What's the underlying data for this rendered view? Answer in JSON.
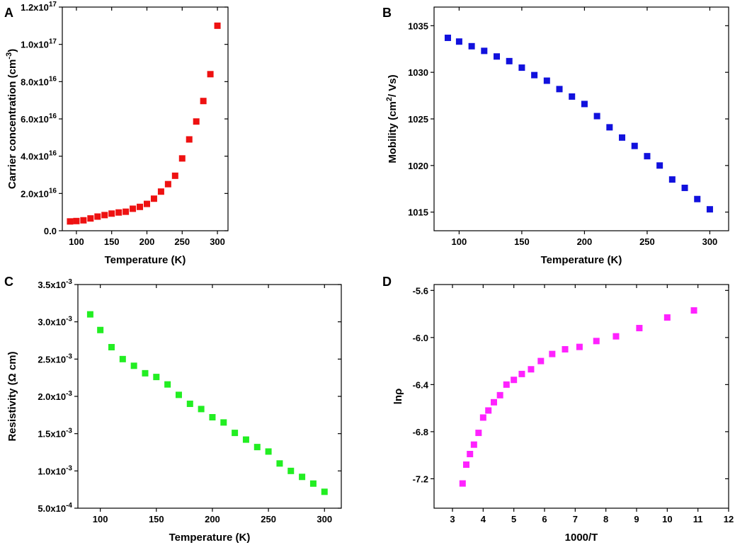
{
  "chart_data": [
    {
      "panel": "A",
      "type": "scatter",
      "color": "#ee1111",
      "xlabel": "Temperature (K)",
      "ylabel": "Carrier concentration (cm-3)",
      "ylabel_parts": {
        "base": "Carrier concentration (cm",
        "sup": "-3",
        "tail": ")"
      },
      "xlim": [
        80,
        315
      ],
      "ylim": [
        0,
        1.2e+17
      ],
      "xticks": [
        100,
        150,
        200,
        250,
        300
      ],
      "xtick_labels": [
        "100",
        "150",
        "200",
        "250",
        "300"
      ],
      "yticks": [
        0,
        2e+16,
        4e+16,
        6e+16,
        8e+16,
        1e+17,
        1.2e+17
      ],
      "ytick_labels": [
        {
          "base": "0.0",
          "sup": ""
        },
        {
          "base": "2.0x10",
          "sup": "16"
        },
        {
          "base": "4.0x10",
          "sup": "16"
        },
        {
          "base": "6.0x10",
          "sup": "16"
        },
        {
          "base": "8.0x10",
          "sup": "16"
        },
        {
          "base": "1.0x10",
          "sup": "17"
        },
        {
          "base": "1.2x10",
          "sup": "17"
        }
      ],
      "x": [
        91,
        100,
        110,
        120,
        130,
        140,
        150,
        160,
        170,
        180,
        190,
        200,
        210,
        220,
        230,
        240,
        250,
        260,
        270,
        280,
        290,
        300
      ],
      "y": [
        5000000000000000.0,
        5200000000000000.0,
        5600000000000000.0,
        6600000000000000.0,
        7600000000000000.0,
        8400000000000000.0,
        9200000000000000.0,
        9800000000000000.0,
        1.02e+16,
        1.18e+16,
        1.28e+16,
        1.44e+16,
        1.72e+16,
        2.1e+16,
        2.5e+16,
        2.95e+16,
        3.88e+16,
        4.9e+16,
        5.86e+16,
        6.96e+16,
        8.4e+16,
        1.1e+17
      ]
    },
    {
      "panel": "B",
      "type": "scatter",
      "color": "#1111dd",
      "xlabel": "Temperature (K)",
      "ylabel": "Mobility (cm2/ Vs)",
      "ylabel_parts": {
        "base": "Mobility (cm",
        "sup": "2",
        "tail": "/ Vs)"
      },
      "xlim": [
        80,
        315
      ],
      "ylim": [
        1013,
        1037
      ],
      "xticks": [
        100,
        150,
        200,
        250,
        300
      ],
      "xtick_labels": [
        "100",
        "150",
        "200",
        "250",
        "300"
      ],
      "yticks": [
        1015,
        1020,
        1025,
        1030,
        1035
      ],
      "ytick_labels": [
        {
          "base": "1015",
          "sup": ""
        },
        {
          "base": "1020",
          "sup": ""
        },
        {
          "base": "1025",
          "sup": ""
        },
        {
          "base": "1030",
          "sup": ""
        },
        {
          "base": "1035",
          "sup": ""
        }
      ],
      "x": [
        91,
        100,
        110,
        120,
        130,
        140,
        150,
        160,
        170,
        180,
        190,
        200,
        210,
        220,
        230,
        240,
        250,
        260,
        270,
        280,
        290,
        300
      ],
      "y": [
        1033.7,
        1033.3,
        1032.8,
        1032.3,
        1031.7,
        1031.2,
        1030.5,
        1029.7,
        1029.1,
        1028.2,
        1027.4,
        1026.6,
        1025.3,
        1024.1,
        1023.0,
        1022.1,
        1021.0,
        1020.0,
        1018.5,
        1017.6,
        1016.4,
        1015.3
      ]
    },
    {
      "panel": "C",
      "type": "scatter",
      "color": "#22ee22",
      "xlabel": "Temperature (K)",
      "ylabel": "Resistivity (Ω cm)",
      "ylabel_parts": {
        "base": "Resistivity (Ω cm)",
        "sup": "",
        "tail": ""
      },
      "xlim": [
        80,
        315
      ],
      "ylim": [
        0.0005,
        0.0035
      ],
      "xticks": [
        100,
        150,
        200,
        250,
        300
      ],
      "xtick_labels": [
        "100",
        "150",
        "200",
        "250",
        "300"
      ],
      "yticks": [
        0.0005,
        0.001,
        0.0015,
        0.002,
        0.0025,
        0.003,
        0.0035
      ],
      "ytick_labels": [
        {
          "base": "5.0x10",
          "sup": "-4"
        },
        {
          "base": "1.0x10",
          "sup": "-3"
        },
        {
          "base": "1.5x10",
          "sup": "-3"
        },
        {
          "base": "2.0x10",
          "sup": "-3"
        },
        {
          "base": "2.5x10",
          "sup": "-3"
        },
        {
          "base": "3.0x10",
          "sup": "-3"
        },
        {
          "base": "3.5x10",
          "sup": "-3"
        }
      ],
      "x": [
        91,
        100,
        110,
        120,
        130,
        140,
        150,
        160,
        170,
        180,
        190,
        200,
        210,
        220,
        230,
        240,
        250,
        260,
        270,
        280,
        290,
        300
      ],
      "y": [
        0.0031,
        0.00289,
        0.00266,
        0.0025,
        0.00241,
        0.00231,
        0.00226,
        0.00216,
        0.00202,
        0.0019,
        0.00183,
        0.00172,
        0.00165,
        0.00151,
        0.00142,
        0.00132,
        0.00126,
        0.0011,
        0.001,
        0.00092,
        0.00083,
        0.00072
      ]
    },
    {
      "panel": "D",
      "type": "scatter",
      "color": "#ff22ff",
      "xlabel": "1000/T",
      "ylabel": "lnρ",
      "ylabel_parts": {
        "base": "lnρ",
        "sup": "",
        "tail": ""
      },
      "xlim": [
        2.4,
        12
      ],
      "ylim": [
        -7.45,
        -5.55
      ],
      "xticks": [
        3,
        4,
        5,
        6,
        7,
        8,
        9,
        10,
        11,
        12
      ],
      "xtick_labels": [
        "3",
        "4",
        "5",
        "6",
        "7",
        "8",
        "9",
        "10",
        "11",
        "12"
      ],
      "yticks": [
        -7.2,
        -6.8,
        -6.4,
        -6.0,
        -5.6
      ],
      "ytick_labels": [
        {
          "base": "-7.2",
          "sup": ""
        },
        {
          "base": "-6.8",
          "sup": ""
        },
        {
          "base": "-6.4",
          "sup": ""
        },
        {
          "base": "-6.0",
          "sup": ""
        },
        {
          "base": "-5.6",
          "sup": ""
        }
      ],
      "x": [
        3.33,
        3.45,
        3.57,
        3.7,
        3.85,
        4.0,
        4.17,
        4.35,
        4.55,
        4.76,
        5.0,
        5.26,
        5.56,
        5.88,
        6.25,
        6.67,
        7.14,
        7.69,
        8.33,
        9.09,
        10.0,
        10.87
      ],
      "y": [
        -7.24,
        -7.08,
        -6.99,
        -6.91,
        -6.81,
        -6.68,
        -6.62,
        -6.55,
        -6.49,
        -6.4,
        -6.36,
        -6.31,
        -6.27,
        -6.2,
        -6.14,
        -6.1,
        -6.08,
        -6.03,
        -5.99,
        -5.92,
        -5.83,
        -5.77
      ]
    }
  ]
}
